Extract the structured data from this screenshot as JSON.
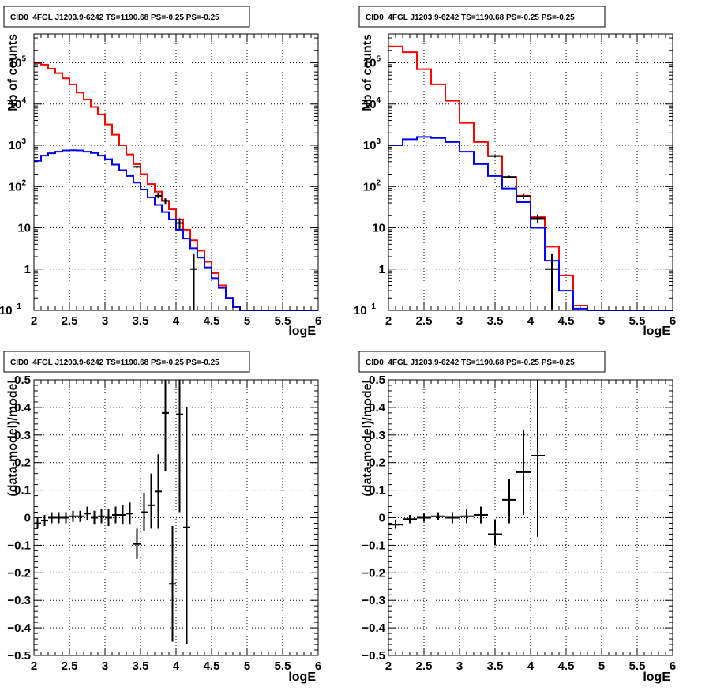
{
  "chart_data": [
    {
      "type": "line",
      "title": "CID0_4FGL J1203.9-6242 TS=1190.68 PS=-0.25 PS=-0.25",
      "xlabel": "logE",
      "ylabel": "Nb of counts",
      "xlim": [
        2,
        6
      ],
      "ylim": [
        0.1,
        500000
      ],
      "yscale": "log",
      "grid": true,
      "x_ticks": [
        "2",
        "2.5",
        "3",
        "3.5",
        "4",
        "4.5",
        "5",
        "5.5",
        "6"
      ],
      "y_ticks": [
        {
          "value": 0.1,
          "label": "10",
          "exp": "−1"
        },
        {
          "value": 1,
          "label": "1",
          "exp": ""
        },
        {
          "value": 10,
          "label": "10",
          "exp": ""
        },
        {
          "value": 100,
          "label": "10",
          "exp": "2"
        },
        {
          "value": 1000,
          "label": "10",
          "exp": "3"
        },
        {
          "value": 10000,
          "label": "10",
          "exp": "4"
        },
        {
          "value": 100000,
          "label": "10",
          "exp": "5"
        }
      ],
      "bin_edges": [
        2,
        2.1,
        2.2,
        2.3,
        2.4,
        2.5,
        2.6,
        2.7,
        2.8,
        2.9,
        3,
        3.1,
        3.2,
        3.3,
        3.4,
        3.5,
        3.6,
        3.7,
        3.8,
        3.9,
        4,
        4.1,
        4.2,
        4.3,
        4.4,
        4.5,
        4.6,
        4.7,
        4.8,
        4.9,
        5,
        5.1,
        5.2,
        5.3,
        5.4,
        5.5,
        5.6,
        5.7,
        5.8,
        5.9,
        6
      ],
      "series": [
        {
          "role": "total model",
          "color": "#ff0000",
          "values": [
            98000,
            90000,
            72000,
            56000,
            42000,
            30000,
            19000,
            13000,
            8500,
            5600,
            3200,
            1800,
            1000,
            600,
            350,
            200,
            115,
            75,
            45,
            28,
            16,
            9,
            5,
            2.8,
            1.5,
            0.8,
            0.4,
            0.2,
            0.12,
            0.1,
            0.1,
            0.1,
            0.1,
            0.1,
            0.1,
            0.1,
            0.1,
            0.1,
            0.1,
            0.1
          ]
        },
        {
          "role": "source model",
          "color": "#0000ff",
          "values": [
            420,
            560,
            640,
            700,
            750,
            760,
            750,
            700,
            650,
            560,
            460,
            340,
            250,
            180,
            125,
            85,
            55,
            36,
            24,
            16,
            9,
            5.5,
            3.2,
            1.9,
            1.1,
            0.6,
            0.35,
            0.2,
            0.12,
            0.1,
            0.1,
            0.1,
            0.1,
            0.1,
            0.1,
            0.1,
            0.1,
            0.1,
            0.1,
            0.1
          ]
        }
      ],
      "data_points": [
        {
          "x": 3.45,
          "y": 300,
          "yerr": [
            283,
            317
          ]
        },
        {
          "x": 3.75,
          "y": 60,
          "yerr": [
            52,
            68
          ]
        },
        {
          "x": 3.85,
          "y": 45,
          "yerr": [
            38,
            52
          ]
        },
        {
          "x": 4.05,
          "y": 13,
          "yerr": [
            9,
            17
          ]
        },
        {
          "x": 4.25,
          "y": 1,
          "yerr": [
            0.1,
            2.3
          ]
        }
      ]
    },
    {
      "type": "line",
      "title": "CID0_4FGL J1203.9-6242 TS=1190.68 PS=-0.25 PS=-0.25",
      "xlabel": "logE",
      "ylabel": "Nb of counts",
      "xlim": [
        2,
        6
      ],
      "ylim": [
        0.1,
        500000
      ],
      "yscale": "log",
      "grid": true,
      "x_ticks": [
        "2",
        "2.5",
        "3",
        "3.5",
        "4",
        "4.5",
        "5",
        "5.5",
        "6"
      ],
      "y_ticks": [
        {
          "value": 0.1,
          "label": "10",
          "exp": "−1"
        },
        {
          "value": 1,
          "label": "1",
          "exp": ""
        },
        {
          "value": 10,
          "label": "10",
          "exp": ""
        },
        {
          "value": 100,
          "label": "10",
          "exp": "2"
        },
        {
          "value": 1000,
          "label": "10",
          "exp": "3"
        },
        {
          "value": 10000,
          "label": "10",
          "exp": "4"
        },
        {
          "value": 100000,
          "label": "10",
          "exp": "5"
        }
      ],
      "bin_edges": [
        2,
        2.2,
        2.4,
        2.6,
        2.8,
        3,
        3.2,
        3.4,
        3.6,
        3.8,
        4,
        4.2,
        4.4,
        4.6,
        4.8,
        5,
        5.2,
        5.4,
        5.6,
        5.8,
        6
      ],
      "series": [
        {
          "role": "total model",
          "color": "#ff0000",
          "values": [
            250000,
            180000,
            70000,
            30000,
            12000,
            3500,
            1200,
            550,
            170,
            60,
            18,
            3.5,
            0.7,
            0.13,
            0.1,
            0.1,
            0.1,
            0.1,
            0.1,
            0.1
          ]
        },
        {
          "role": "source model",
          "color": "#0000ff",
          "values": [
            1000,
            1400,
            1600,
            1500,
            1200,
            700,
            350,
            180,
            90,
            42,
            10,
            1.6,
            0.3,
            0.11,
            0.1,
            0.1,
            0.1,
            0.1,
            0.1,
            0.1
          ]
        }
      ],
      "data_points": [
        {
          "x": 3.5,
          "y": 550,
          "yerr": [
            520,
            580
          ]
        },
        {
          "x": 3.7,
          "y": 170,
          "yerr": [
            157,
            183
          ]
        },
        {
          "x": 3.9,
          "y": 58,
          "yerr": [
            50,
            66
          ]
        },
        {
          "x": 4.1,
          "y": 17,
          "yerr": [
            13,
            21
          ]
        },
        {
          "x": 4.3,
          "y": 1,
          "yerr": [
            0.1,
            2.3
          ]
        }
      ]
    },
    {
      "type": "scatter",
      "title": "CID0_4FGL J1203.9-6242 TS=1190.68 PS=-0.25 PS=-0.25",
      "xlabel": "logE",
      "ylabel": "(data-model)/model",
      "xlim": [
        2,
        6
      ],
      "ylim": [
        -0.5,
        0.5
      ],
      "grid": true,
      "x_ticks": [
        "2",
        "2.5",
        "3",
        "3.5",
        "4",
        "4.5",
        "5",
        "5.5",
        "6"
      ],
      "y_ticks": [
        "−0.5",
        "−0.4",
        "−0.3",
        "−0.2",
        "−0.1",
        "0",
        "0.1",
        "0.2",
        "0.3",
        "0.4",
        "0.5"
      ],
      "points": [
        {
          "x": 2.05,
          "y": -0.02,
          "lo": -0.04,
          "hi": 0.0
        },
        {
          "x": 2.15,
          "y": -0.01,
          "lo": -0.03,
          "hi": 0.01
        },
        {
          "x": 2.25,
          "y": 0.0,
          "lo": -0.02,
          "hi": 0.02
        },
        {
          "x": 2.35,
          "y": 0.0,
          "lo": -0.02,
          "hi": 0.02
        },
        {
          "x": 2.45,
          "y": 0.0,
          "lo": -0.02,
          "hi": 0.02
        },
        {
          "x": 2.55,
          "y": 0.005,
          "lo": -0.015,
          "hi": 0.025
        },
        {
          "x": 2.65,
          "y": 0.005,
          "lo": -0.015,
          "hi": 0.025
        },
        {
          "x": 2.75,
          "y": 0.015,
          "lo": -0.01,
          "hi": 0.04
        },
        {
          "x": 2.85,
          "y": 0.0,
          "lo": -0.025,
          "hi": 0.025
        },
        {
          "x": 2.95,
          "y": 0.005,
          "lo": -0.02,
          "hi": 0.03
        },
        {
          "x": 3.05,
          "y": 0.0,
          "lo": -0.03,
          "hi": 0.03
        },
        {
          "x": 3.15,
          "y": 0.01,
          "lo": -0.02,
          "hi": 0.04
        },
        {
          "x": 3.25,
          "y": 0.01,
          "lo": -0.025,
          "hi": 0.045
        },
        {
          "x": 3.35,
          "y": 0.015,
          "lo": -0.025,
          "hi": 0.055
        },
        {
          "x": 3.45,
          "y": -0.095,
          "lo": -0.15,
          "hi": -0.04
        },
        {
          "x": 3.55,
          "y": 0.02,
          "lo": -0.05,
          "hi": 0.09
        },
        {
          "x": 3.65,
          "y": 0.045,
          "lo": -0.04,
          "hi": 0.16
        },
        {
          "x": 3.75,
          "y": 0.095,
          "lo": -0.04,
          "hi": 0.23
        },
        {
          "x": 3.85,
          "y": 0.38,
          "lo": 0.17,
          "hi": 0.5
        },
        {
          "x": 3.95,
          "y": -0.24,
          "lo": -0.45,
          "hi": -0.03
        },
        {
          "x": 4.05,
          "y": 0.375,
          "lo": 0.02,
          "hi": 0.5
        },
        {
          "x": 4.15,
          "y": -0.035,
          "lo": -0.46,
          "hi": 0.4
        }
      ]
    },
    {
      "type": "scatter",
      "title": "CID0_4FGL J1203.9-6242 TS=1190.68 PS=-0.25 PS=-0.25",
      "xlabel": "logE",
      "ylabel": "(data-model)/model",
      "xlim": [
        2,
        6
      ],
      "ylim": [
        -0.5,
        0.5
      ],
      "grid": true,
      "x_ticks": [
        "2",
        "2.5",
        "3",
        "3.5",
        "4",
        "4.5",
        "5",
        "5.5",
        "6"
      ],
      "y_ticks": [
        "−0.5",
        "−0.4",
        "−0.3",
        "−0.2",
        "−0.1",
        "0",
        "0.1",
        "0.2",
        "0.3",
        "0.4",
        "0.5"
      ],
      "points": [
        {
          "x": 2.1,
          "y": -0.025,
          "lo": -0.04,
          "hi": -0.01
        },
        {
          "x": 2.3,
          "y": -0.005,
          "lo": -0.02,
          "hi": 0.01
        },
        {
          "x": 2.5,
          "y": 0.0,
          "lo": -0.015,
          "hi": 0.015
        },
        {
          "x": 2.7,
          "y": 0.005,
          "lo": -0.01,
          "hi": 0.02
        },
        {
          "x": 2.9,
          "y": 0.0,
          "lo": -0.02,
          "hi": 0.02
        },
        {
          "x": 3.1,
          "y": 0.005,
          "lo": -0.02,
          "hi": 0.03
        },
        {
          "x": 3.3,
          "y": 0.01,
          "lo": -0.02,
          "hi": 0.04
        },
        {
          "x": 3.5,
          "y": -0.06,
          "lo": -0.1,
          "hi": -0.01
        },
        {
          "x": 3.7,
          "y": 0.065,
          "lo": -0.02,
          "hi": 0.14
        },
        {
          "x": 3.9,
          "y": 0.165,
          "lo": 0.01,
          "hi": 0.32
        },
        {
          "x": 4.1,
          "y": 0.225,
          "lo": -0.07,
          "hi": 0.5
        }
      ]
    }
  ]
}
